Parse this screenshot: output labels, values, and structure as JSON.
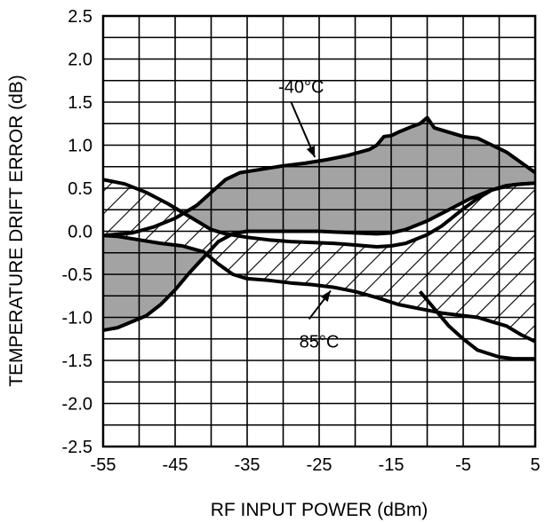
{
  "chart_data": {
    "type": "area",
    "title": "",
    "xlabel": "RF INPUT POWER (dBm)",
    "ylabel": "TEMPERATURE DRIFT ERROR (dB)",
    "xlim": [
      -55,
      5
    ],
    "ylim": [
      -2.5,
      2.5
    ],
    "x_ticks": [
      "-55",
      "-45",
      "-35",
      "-25",
      "-15",
      "-5",
      "5"
    ],
    "y_ticks": [
      "2.5",
      "2.0",
      "1.5",
      "1.0",
      "0.5",
      "0.0",
      "-0.5",
      "-1.0",
      "-1.5",
      "-2.0",
      "-2.5"
    ],
    "grid": true,
    "grid_x_step": 5,
    "grid_y_step": 0.25,
    "series": [
      {
        "name": "-40°C",
        "fill": "#a3a3a3",
        "upper": [
          [
            -55,
            -0.05
          ],
          [
            -51,
            -0.02
          ],
          [
            -48,
            0.05
          ],
          [
            -45,
            0.15
          ],
          [
            -42,
            0.3
          ],
          [
            -40,
            0.45
          ],
          [
            -38,
            0.6
          ],
          [
            -36,
            0.68
          ],
          [
            -33,
            0.72
          ],
          [
            -30,
            0.76
          ],
          [
            -27,
            0.79
          ],
          [
            -24,
            0.83
          ],
          [
            -21,
            0.88
          ],
          [
            -18,
            0.95
          ],
          [
            -17,
            1.0
          ],
          [
            -16,
            1.1
          ],
          [
            -15,
            1.11
          ],
          [
            -14,
            1.15
          ],
          [
            -12,
            1.22
          ],
          [
            -11,
            1.25
          ],
          [
            -10,
            1.32
          ],
          [
            -9,
            1.2
          ],
          [
            -7,
            1.15
          ],
          [
            -5,
            1.1
          ],
          [
            -3,
            1.08
          ],
          [
            -1,
            1.0
          ],
          [
            1,
            0.92
          ],
          [
            3,
            0.8
          ],
          [
            5,
            0.68
          ]
        ],
        "lower": [
          [
            -55,
            -1.15
          ],
          [
            -53,
            -1.12
          ],
          [
            -51,
            -1.05
          ],
          [
            -49,
            -0.98
          ],
          [
            -47,
            -0.85
          ],
          [
            -45,
            -0.68
          ],
          [
            -43,
            -0.48
          ],
          [
            -41,
            -0.3
          ],
          [
            -39,
            -0.12
          ],
          [
            -37,
            -0.03
          ],
          [
            -35,
            0.0
          ],
          [
            -30,
            0.0
          ],
          [
            -25,
            0.0
          ],
          [
            -20,
            -0.02
          ],
          [
            -17,
            -0.03
          ],
          [
            -15,
            -0.02
          ],
          [
            -13,
            0.02
          ],
          [
            -10,
            0.12
          ],
          [
            -7,
            0.25
          ],
          [
            -4,
            0.38
          ],
          [
            -1,
            0.48
          ],
          [
            2,
            0.54
          ],
          [
            5,
            0.56
          ]
        ]
      },
      {
        "name": "85°C",
        "fill": "hatch",
        "upper": [
          [
            -55,
            0.6
          ],
          [
            -52,
            0.55
          ],
          [
            -49,
            0.45
          ],
          [
            -46,
            0.32
          ],
          [
            -43,
            0.17
          ],
          [
            -40,
            0.02
          ],
          [
            -38,
            -0.03
          ],
          [
            -35,
            -0.07
          ],
          [
            -32,
            -0.1
          ],
          [
            -29,
            -0.12
          ],
          [
            -26,
            -0.13
          ],
          [
            -23,
            -0.14
          ],
          [
            -20,
            -0.16
          ],
          [
            -17,
            -0.18
          ],
          [
            -15,
            -0.17
          ],
          [
            -13,
            -0.14
          ],
          [
            -10,
            -0.04
          ],
          [
            -8,
            0.06
          ],
          [
            -5,
            0.26
          ],
          [
            -3,
            0.38
          ],
          [
            -1,
            0.48
          ],
          [
            1,
            0.53
          ],
          [
            3,
            0.55
          ],
          [
            5,
            0.56
          ]
        ],
        "lower": [
          [
            -55,
            -0.05
          ],
          [
            -53,
            -0.06
          ],
          [
            -50,
            -0.1
          ],
          [
            -47,
            -0.14
          ],
          [
            -44,
            -0.17
          ],
          [
            -41,
            -0.24
          ],
          [
            -39,
            -0.38
          ],
          [
            -37,
            -0.5
          ],
          [
            -35,
            -0.55
          ],
          [
            -32,
            -0.57
          ],
          [
            -29,
            -0.6
          ],
          [
            -26,
            -0.62
          ],
          [
            -23,
            -0.65
          ],
          [
            -20,
            -0.7
          ],
          [
            -17,
            -0.77
          ],
          [
            -14,
            -0.85
          ],
          [
            -11,
            -0.9
          ],
          [
            -8,
            -0.95
          ],
          [
            -5,
            -0.98
          ],
          [
            -3,
            -1.0
          ],
          [
            -1,
            -1.05
          ],
          [
            1,
            -1.1
          ],
          [
            3,
            -1.2
          ],
          [
            5,
            -1.28
          ]
        ]
      }
    ],
    "extra_curves": [
      [
        [
          -11,
          -0.7
        ],
        [
          -9,
          -0.9
        ],
        [
          -7,
          -1.1
        ],
        [
          -5,
          -1.25
        ],
        [
          -3,
          -1.38
        ],
        [
          0,
          -1.46
        ],
        [
          2,
          -1.48
        ],
        [
          5,
          -1.48
        ]
      ]
    ],
    "annotations": [
      {
        "text": "-40°C",
        "x": -27.5,
        "y": 1.68,
        "arrow_from": [
          -28.9,
          1.5
        ],
        "arrow_to": [
          -25.6,
          0.86
        ]
      },
      {
        "text": "85°C",
        "x": -25,
        "y": -1.28,
        "arrow_from": [
          -26.4,
          -1.02
        ],
        "arrow_to": [
          -23.4,
          -0.69
        ]
      }
    ]
  }
}
